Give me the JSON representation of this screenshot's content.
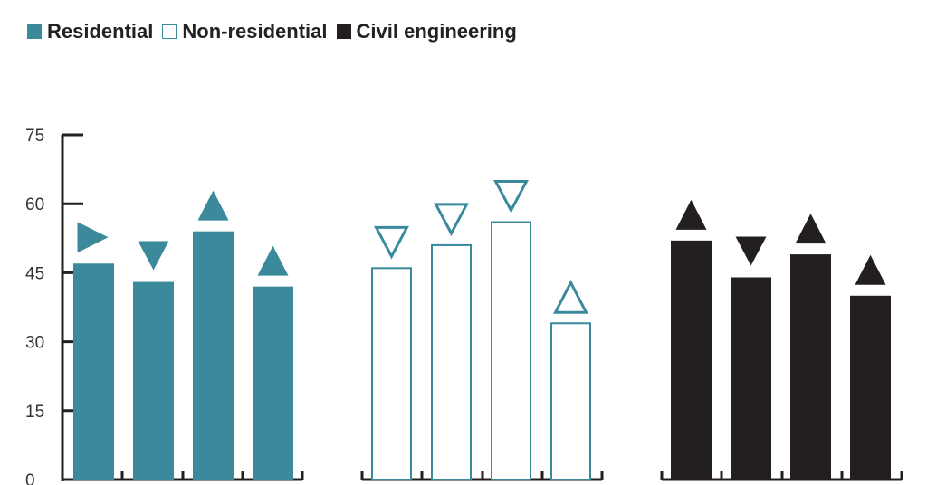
{
  "chart_data": {
    "type": "bar",
    "title": "",
    "xlabel": "",
    "ylabel": "",
    "ylim": [
      0,
      75
    ],
    "y_ticks": [
      0,
      15,
      30,
      45,
      60,
      75
    ],
    "grid": false,
    "legend_position": "top-left",
    "groups": [
      {
        "name": "Residential",
        "style": "filled",
        "color": "#3a8a9c",
        "values": [
          47,
          43,
          54,
          42
        ],
        "markers": [
          "right",
          "down",
          "up",
          "up"
        ]
      },
      {
        "name": "Non-residential",
        "style": "outline",
        "color": "#3a8a9c",
        "values": [
          46,
          51,
          56,
          34
        ],
        "markers": [
          "down",
          "down",
          "down",
          "up"
        ]
      },
      {
        "name": "Civil engineering",
        "style": "filled",
        "color": "#231f20",
        "values": [
          52,
          44,
          49,
          40
        ],
        "markers": [
          "up",
          "down",
          "up",
          "up"
        ]
      }
    ]
  },
  "legend": [
    {
      "label": "Residential",
      "color": "#3a8a9c",
      "style": "filled"
    },
    {
      "label": "Non-residential",
      "color": "#3a8a9c",
      "style": "outline"
    },
    {
      "label": "Civil engineering",
      "color": "#231f20",
      "style": "filled"
    }
  ],
  "colors": {
    "axis": "#231f20",
    "text": "#333333"
  }
}
